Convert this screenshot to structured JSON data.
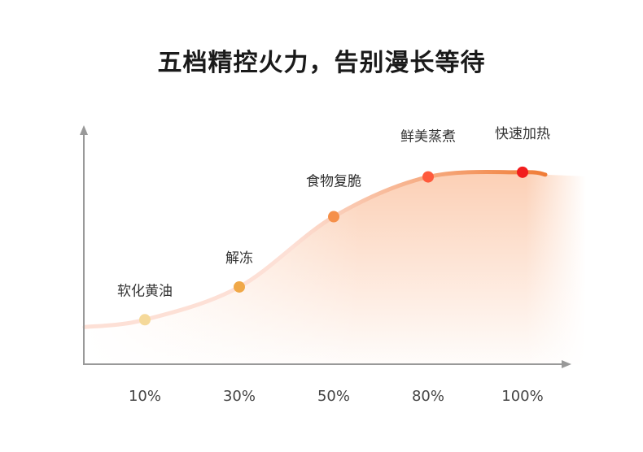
{
  "title": "五档精控火力，告别漫长等待",
  "chart_data": {
    "type": "line",
    "title": "五档精控火力，告别漫长等待",
    "xlabel": "",
    "ylabel": "",
    "categories": [
      "10%",
      "30%",
      "50%",
      "80%",
      "100%"
    ],
    "annotations": [
      "软化黄油",
      "解冻",
      "食物复脆",
      "鲜美蒸煮",
      "快速加热"
    ],
    "values": [
      0.19,
      0.33,
      0.63,
      0.8,
      0.82
    ],
    "ylim": [
      0,
      1
    ],
    "grid": false,
    "point_colors": [
      "#f5d99a",
      "#f0a848",
      "#f5904a",
      "#ff5a3c",
      "#f21e1e"
    ],
    "line_colors": [
      "#fde0d6",
      "#f07c36"
    ],
    "fill_color": "#fbc7a8",
    "axis_color": "#999999"
  }
}
